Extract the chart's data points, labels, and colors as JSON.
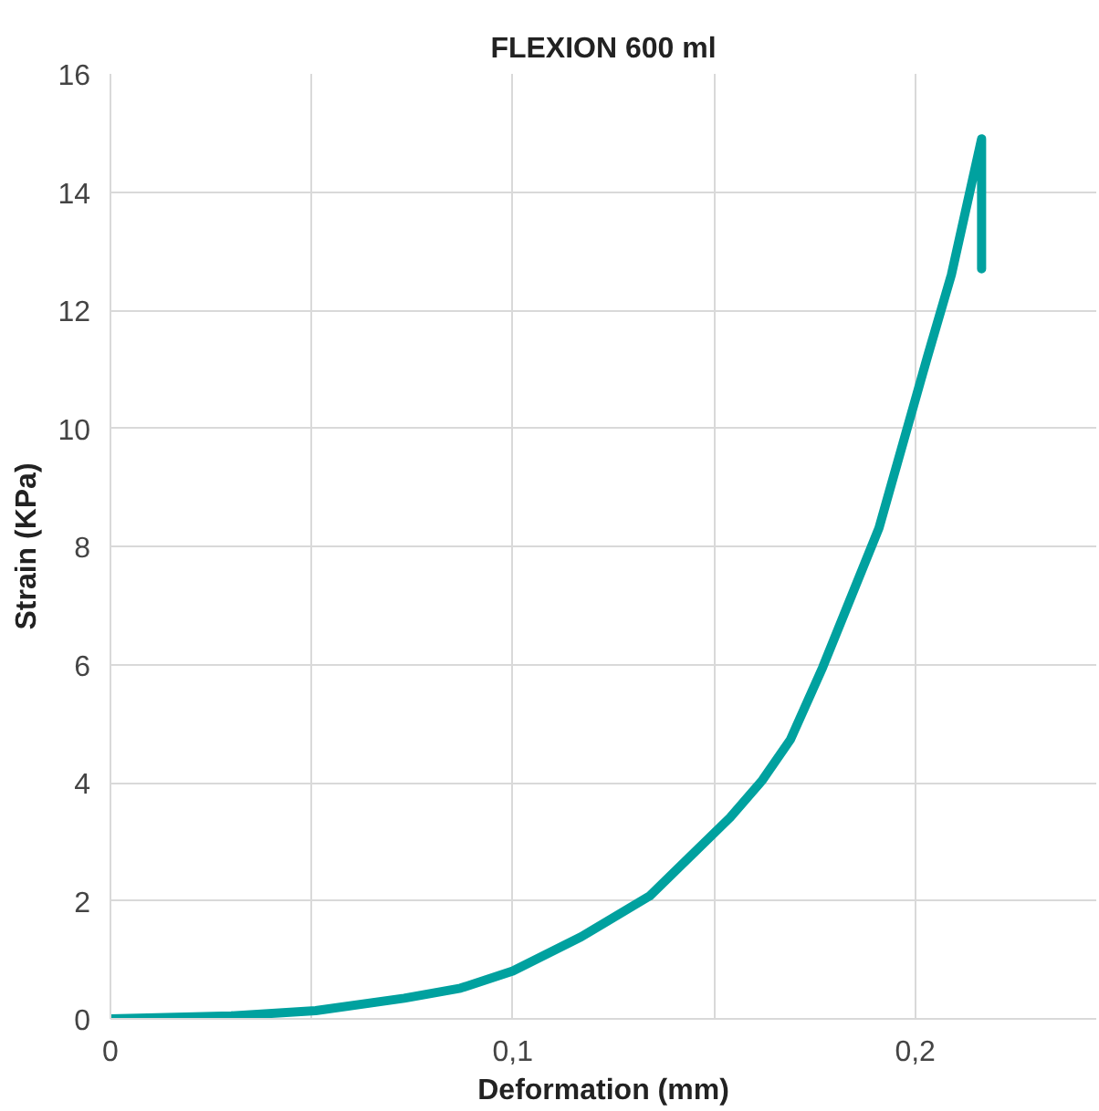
{
  "chart_data": {
    "type": "line",
    "title": "FLEXION 600 ml",
    "xlabel": "Deformation (mm)",
    "ylabel": "Strain (KPa)",
    "xlim": [
      0,
      0.245
    ],
    "xticks": [
      0,
      {
        "value": 0.05,
        "label": null
      },
      {
        "value": 0.1,
        "label": "0,1"
      },
      {
        "value": 0.15,
        "label": null
      },
      {
        "value": 0.2,
        "label": "0,2"
      }
    ],
    "ylim": [
      0,
      16
    ],
    "yticks": [
      0,
      2,
      4,
      6,
      8,
      10,
      12,
      14,
      16
    ],
    "grid": true,
    "marker": "none",
    "line_style": "solid",
    "series": [
      {
        "color": "#00a19f",
        "x": [
          0,
          0.03,
          0.051,
          0.073,
          0.087,
          0.1,
          0.117,
          0.134,
          0.154,
          0.162,
          0.169,
          0.177,
          0.191,
          0.203,
          0.209,
          0.2165,
          0.2165
        ],
        "values": [
          0,
          0.05,
          0.14,
          0.35,
          0.52,
          0.81,
          1.39,
          2.08,
          3.41,
          4.04,
          4.73,
          5.95,
          8.31,
          11.2,
          12.6,
          14.9,
          12.7
        ]
      }
    ]
  }
}
